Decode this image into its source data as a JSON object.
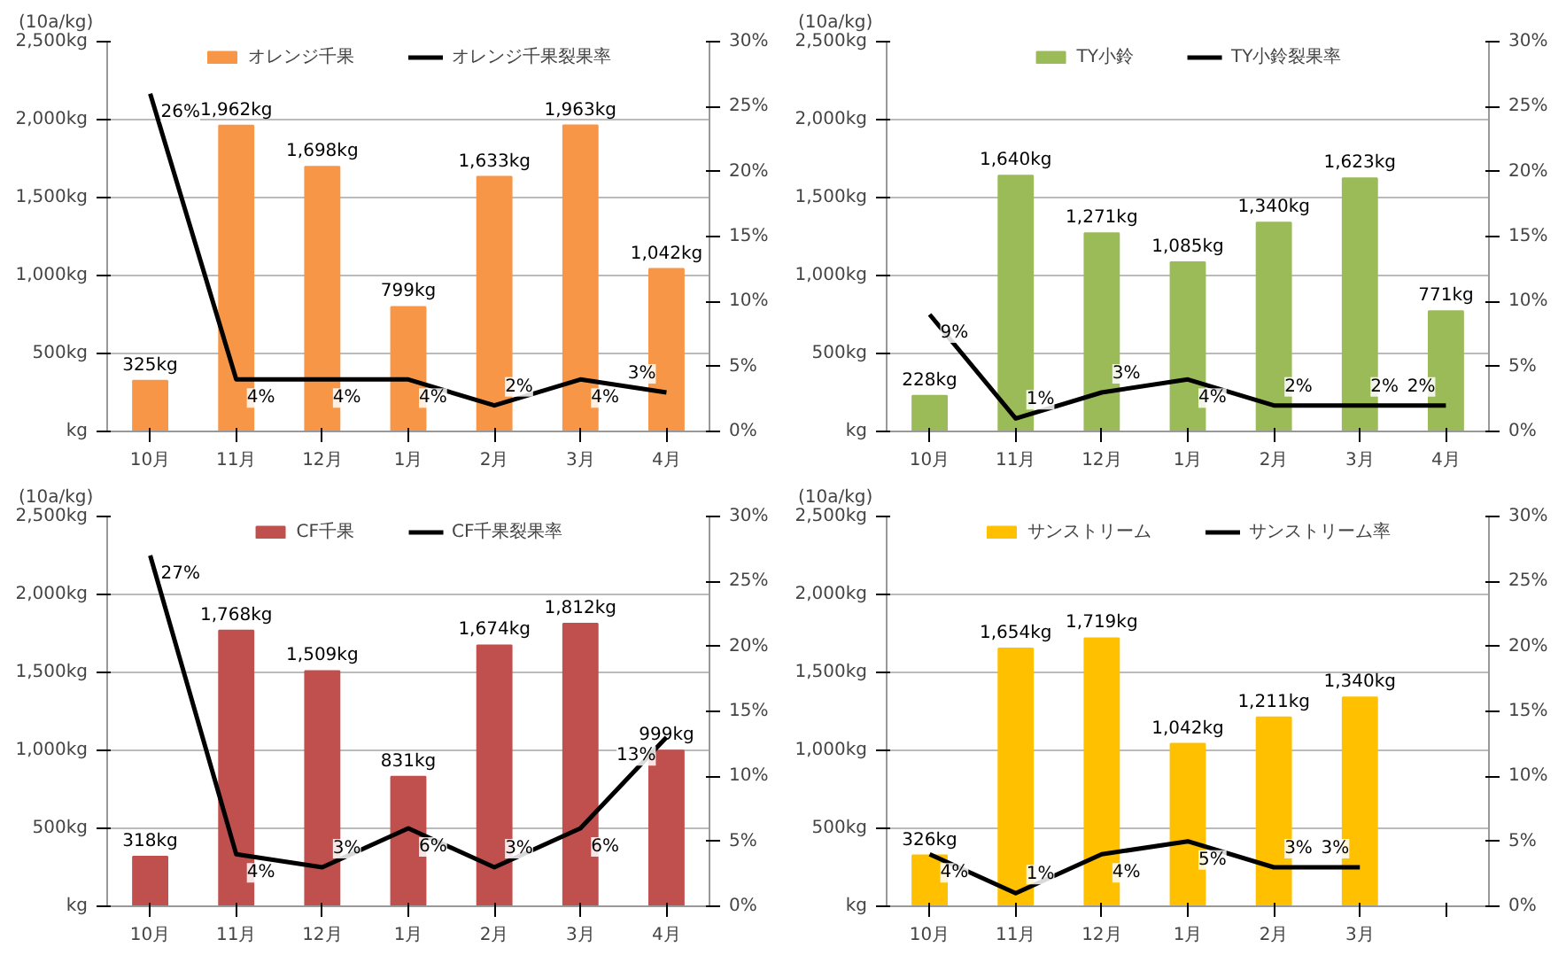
{
  "chart_data": [
    {
      "type": "bar",
      "categories": [
        "10月",
        "11月",
        "12月",
        "1月",
        "2月",
        "3月",
        "4月"
      ],
      "annotations": [
        "(10a/kg)"
      ],
      "ylim": [
        0,
        2500
      ],
      "yticks": [
        {
          "value": 0,
          "label": "kg"
        },
        {
          "value": 500,
          "label": "500kg"
        },
        {
          "value": 1000,
          "label": "1,000kg"
        },
        {
          "value": 1500,
          "label": "1,500kg"
        },
        {
          "value": 2000,
          "label": "2,000kg"
        },
        {
          "value": 2500,
          "label": "2,500kg"
        }
      ],
      "y2lim": [
        0,
        30
      ],
      "y2ticks": [
        {
          "value": 0,
          "label": "0%"
        },
        {
          "value": 5,
          "label": "5%"
        },
        {
          "value": 10,
          "label": "10%"
        },
        {
          "value": 15,
          "label": "15%"
        },
        {
          "value": 20,
          "label": "20%"
        },
        {
          "value": 25,
          "label": "25%"
        },
        {
          "value": 30,
          "label": "30%"
        }
      ],
      "grid": "y",
      "legend": "top",
      "series": [
        {
          "name": "オレンジ千果",
          "color": "#f79646",
          "values": [
            325,
            1962,
            1698,
            799,
            1633,
            1963,
            1042
          ],
          "value_labels": [
            "325kg",
            "1,962kg",
            "1,698kg",
            "799kg",
            "1,633kg",
            "1,963kg",
            "1,042kg"
          ]
        },
        {
          "name": "オレンジ千果裂果率",
          "type": "line",
          "axis": "y2",
          "color": "#000000",
          "values": [
            26,
            4,
            4,
            4,
            2,
            4,
            3
          ],
          "value_labels": [
            "26%",
            "4%",
            "4%",
            "4%",
            "2%",
            "4%",
            "3%"
          ]
        }
      ]
    },
    {
      "type": "bar",
      "categories": [
        "10月",
        "11月",
        "12月",
        "1月",
        "2月",
        "3月",
        "4月"
      ],
      "annotations": [
        "(10a/kg)"
      ],
      "ylim": [
        0,
        2500
      ],
      "yticks": [
        {
          "value": 0,
          "label": "kg"
        },
        {
          "value": 500,
          "label": "500kg"
        },
        {
          "value": 1000,
          "label": "1,000kg"
        },
        {
          "value": 1500,
          "label": "1,500kg"
        },
        {
          "value": 2000,
          "label": "2,000kg"
        },
        {
          "value": 2500,
          "label": "2,500kg"
        }
      ],
      "y2lim": [
        0,
        30
      ],
      "y2ticks": [
        {
          "value": 0,
          "label": "0%"
        },
        {
          "value": 5,
          "label": "5%"
        },
        {
          "value": 10,
          "label": "10%"
        },
        {
          "value": 15,
          "label": "15%"
        },
        {
          "value": 20,
          "label": "20%"
        },
        {
          "value": 25,
          "label": "25%"
        },
        {
          "value": 30,
          "label": "30%"
        }
      ],
      "grid": "y",
      "legend": "top",
      "series": [
        {
          "name": "TY小鈴",
          "color": "#9bbb59",
          "values": [
            228,
            1640,
            1271,
            1085,
            1340,
            1623,
            771
          ],
          "value_labels": [
            "228kg",
            "1,640kg",
            "1,271kg",
            "1,085kg",
            "1,340kg",
            "1,623kg",
            "771kg"
          ]
        },
        {
          "name": "TY小鈴裂果率",
          "type": "line",
          "axis": "y2",
          "color": "#000000",
          "values": [
            9,
            1,
            3,
            4,
            2,
            2,
            2
          ],
          "value_labels": [
            "9%",
            "1%",
            "3%",
            "4%",
            "2%",
            "2%",
            "2%"
          ]
        }
      ]
    },
    {
      "type": "bar",
      "categories": [
        "10月",
        "11月",
        "12月",
        "1月",
        "2月",
        "3月",
        "4月"
      ],
      "annotations": [
        "(10a/kg)"
      ],
      "ylim": [
        0,
        2500
      ],
      "yticks": [
        {
          "value": 0,
          "label": "kg"
        },
        {
          "value": 500,
          "label": "500kg"
        },
        {
          "value": 1000,
          "label": "1,000kg"
        },
        {
          "value": 1500,
          "label": "1,500kg"
        },
        {
          "value": 2000,
          "label": "2,000kg"
        },
        {
          "value": 2500,
          "label": "2,500kg"
        }
      ],
      "y2lim": [
        0,
        30
      ],
      "y2ticks": [
        {
          "value": 0,
          "label": "0%"
        },
        {
          "value": 5,
          "label": "5%"
        },
        {
          "value": 10,
          "label": "10%"
        },
        {
          "value": 15,
          "label": "15%"
        },
        {
          "value": 20,
          "label": "20%"
        },
        {
          "value": 25,
          "label": "25%"
        },
        {
          "value": 30,
          "label": "30%"
        }
      ],
      "grid": "y",
      "legend": "top",
      "series": [
        {
          "name": "CF千果",
          "color": "#c0504d",
          "values": [
            318,
            1768,
            1509,
            831,
            1674,
            1812,
            999
          ],
          "value_labels": [
            "318kg",
            "1,768kg",
            "1,509kg",
            "831kg",
            "1,674kg",
            "1,812kg",
            "999kg"
          ]
        },
        {
          "name": "CF千果裂果率",
          "type": "line",
          "axis": "y2",
          "color": "#000000",
          "values": [
            27,
            4,
            3,
            6,
            3,
            6,
            13
          ],
          "value_labels": [
            "27%",
            "4%",
            "3%",
            "6%",
            "3%",
            "6%",
            "13%"
          ]
        }
      ]
    },
    {
      "type": "bar",
      "categories": [
        "10月",
        "11月",
        "12月",
        "1月",
        "2月",
        "3月",
        null
      ],
      "annotations": [
        "(10a/kg)"
      ],
      "ylim": [
        0,
        2500
      ],
      "yticks": [
        {
          "value": 0,
          "label": "kg"
        },
        {
          "value": 500,
          "label": "500kg"
        },
        {
          "value": 1000,
          "label": "1,000kg"
        },
        {
          "value": 1500,
          "label": "1,500kg"
        },
        {
          "value": 2000,
          "label": "2,000kg"
        },
        {
          "value": 2500,
          "label": "2,500kg"
        }
      ],
      "y2lim": [
        0,
        30
      ],
      "y2ticks": [
        {
          "value": 0,
          "label": "0%"
        },
        {
          "value": 5,
          "label": "5%"
        },
        {
          "value": 10,
          "label": "10%"
        },
        {
          "value": 15,
          "label": "15%"
        },
        {
          "value": 20,
          "label": "20%"
        },
        {
          "value": 25,
          "label": "25%"
        },
        {
          "value": 30,
          "label": "30%"
        }
      ],
      "grid": "y",
      "legend": "top",
      "series": [
        {
          "name": "サンストリーム",
          "color": "#ffc000",
          "values": [
            326,
            1654,
            1719,
            1042,
            1211,
            1340,
            null
          ],
          "value_labels": [
            "326kg",
            "1,654kg",
            "1,719kg",
            "1,042kg",
            "1,211kg",
            "1,340kg",
            null
          ]
        },
        {
          "name": "サンストリーム率",
          "type": "line",
          "axis": "y2",
          "color": "#000000",
          "values": [
            4,
            1,
            4,
            5,
            3,
            3,
            null
          ],
          "value_labels": [
            "4%",
            "1%",
            "4%",
            "5%",
            "3%",
            "3%",
            null
          ]
        }
      ]
    }
  ]
}
